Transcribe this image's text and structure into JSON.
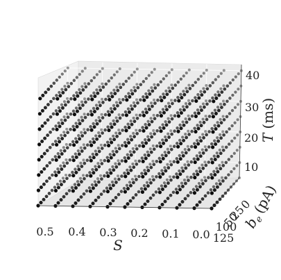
{
  "chart_data": {
    "type": "scatter",
    "projection": "3d",
    "x_axis": {
      "label": "S",
      "ticks": [
        "0.5",
        "0.4",
        "0.3",
        "0.2",
        "0.1",
        "0.0"
      ],
      "lim": [
        0.0,
        0.5
      ]
    },
    "y_axis": {
      "label_main": "b",
      "label_sub": "e",
      "label_unit": "(pA)",
      "ticks": [
        "0",
        "25",
        "50",
        "100",
        "125"
      ],
      "lim": [
        0,
        125
      ]
    },
    "z_axis": {
      "label_main": "T",
      "label_unit": "(ms)",
      "ticks": [
        "10",
        "20",
        "30",
        "40"
      ],
      "lim": [
        5,
        42
      ]
    },
    "grid": true,
    "marker_color": "#000000",
    "grid_s": [
      0.0,
      0.05,
      0.1,
      0.15,
      0.2,
      0.25,
      0.3,
      0.35,
      0.4,
      0.45,
      0.5
    ],
    "grid_b": [
      0,
      12.5,
      25,
      37.5,
      50,
      62.5,
      75,
      87.5,
      100,
      112.5,
      125
    ],
    "grid_t": [
      5,
      10,
      15,
      20,
      25,
      30,
      35,
      40
    ]
  }
}
